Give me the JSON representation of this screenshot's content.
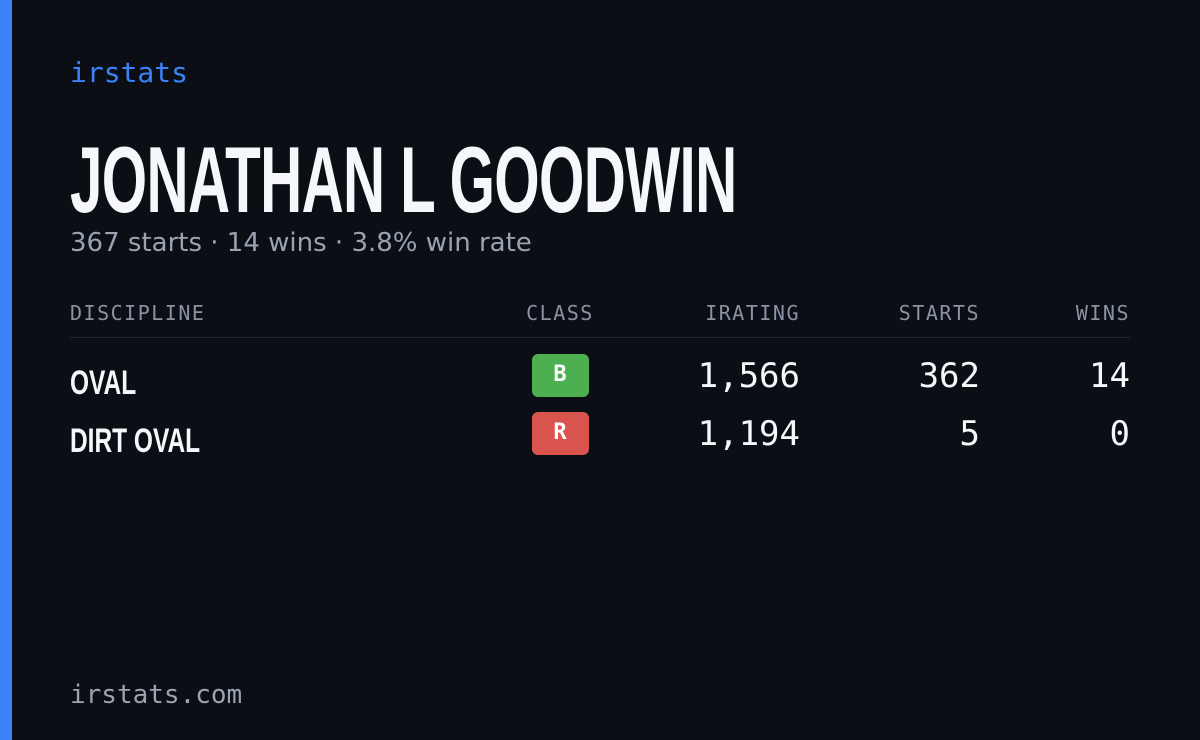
{
  "header": {
    "brand": "irstats",
    "name": "JONATHAN L GOODWIN",
    "summary": "367 starts · 14 wins · 3.8% win rate"
  },
  "table": {
    "columns": [
      "DISCIPLINE",
      "CLASS",
      "IRATING",
      "STARTS",
      "WINS"
    ],
    "rows": [
      {
        "discipline": "OVAL",
        "class": "B",
        "class_color": "#4caf50",
        "irating": "1,566",
        "starts": "362",
        "wins": "14"
      },
      {
        "discipline": "DIRT OVAL",
        "class": "R",
        "class_color": "#d9534f",
        "irating": "1,194",
        "starts": "5",
        "wins": "0"
      }
    ]
  },
  "footer": {
    "domain": "irstats.com"
  }
}
